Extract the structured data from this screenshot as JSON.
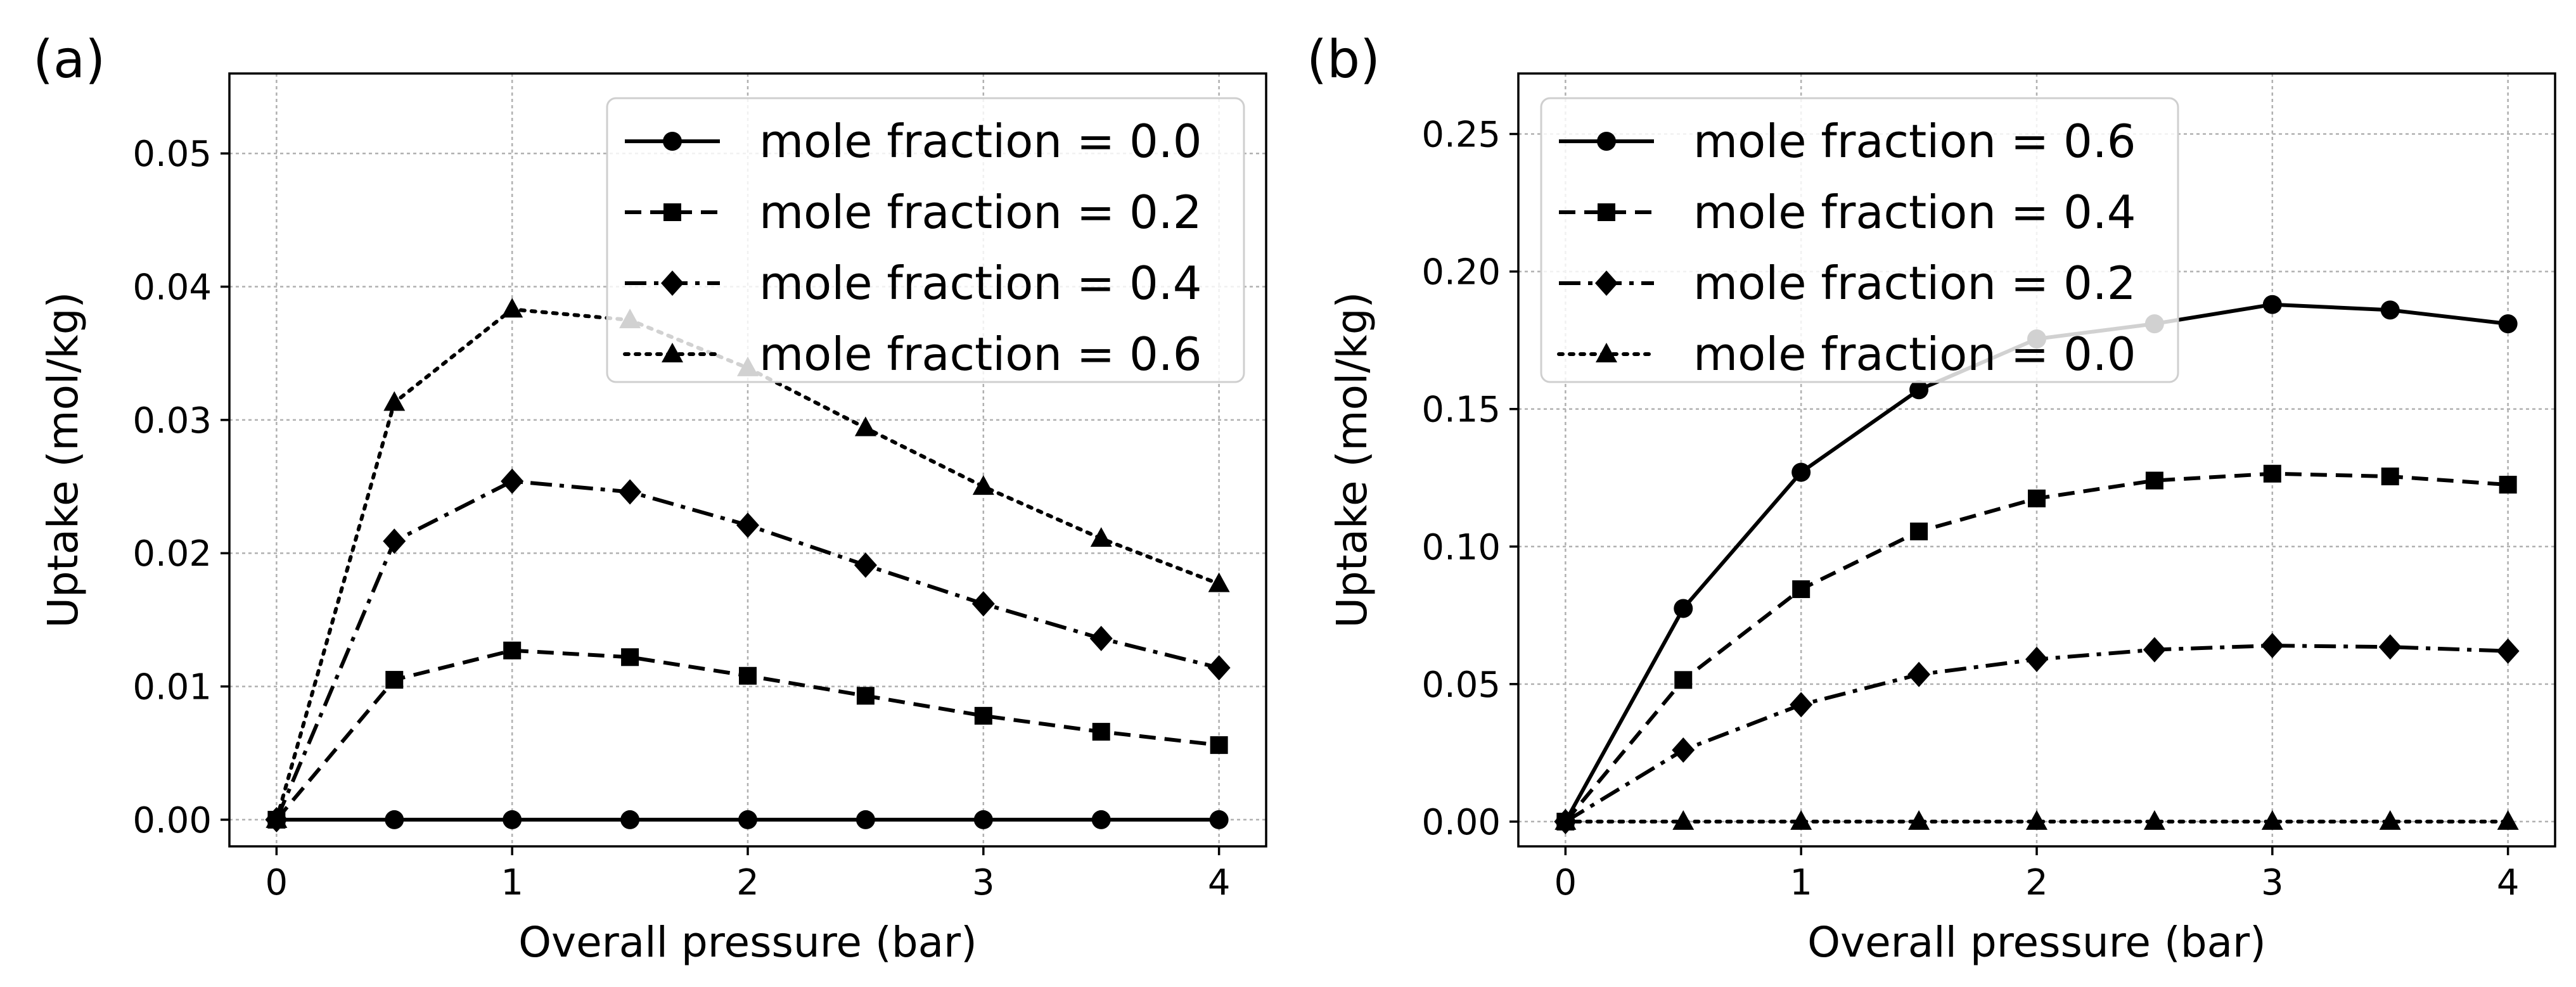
{
  "chart_data": [
    {
      "type": "line",
      "panel_label": "(a)",
      "xlabel": "Overall pressure (bar)",
      "ylabel": "Uptake (mol/kg)",
      "xlim": [
        -0.2,
        4.2
      ],
      "ylim": [
        -0.002,
        0.056
      ],
      "x_ticks": [
        "0",
        "1",
        "2",
        "3",
        "4"
      ],
      "y_ticks": [
        "0.00",
        "0.01",
        "0.02",
        "0.03",
        "0.04",
        "0.05"
      ],
      "x_tick_values": [
        0,
        1,
        2,
        3,
        4
      ],
      "y_tick_values": [
        0,
        0.01,
        0.02,
        0.03,
        0.04,
        0.05
      ],
      "grid": true,
      "legend_position": "upper right",
      "x": [
        0,
        0.5,
        1.0,
        1.5,
        2.0,
        2.5,
        3.0,
        3.5,
        4.0
      ],
      "series": [
        {
          "name": "mole fraction = 0.0",
          "marker": "circle",
          "linestyle": "solid",
          "values": [
            0,
            0,
            0,
            0,
            0,
            0,
            0,
            0,
            0
          ]
        },
        {
          "name": "mole fraction = 0.2",
          "marker": "square",
          "linestyle": "dashed",
          "values": [
            0,
            0.0105,
            0.0127,
            0.0122,
            0.0108,
            0.0093,
            0.0078,
            0.0066,
            0.0056
          ]
        },
        {
          "name": "mole fraction = 0.4",
          "marker": "diamond",
          "linestyle": "dashdot",
          "values": [
            0,
            0.0209,
            0.0254,
            0.0246,
            0.0221,
            0.0191,
            0.0162,
            0.0136,
            0.0114
          ]
        },
        {
          "name": "mole fraction = 0.6",
          "marker": "triangle",
          "linestyle": "dotted",
          "values": [
            0,
            0.0313,
            0.0383,
            0.0375,
            0.0339,
            0.0294,
            0.025,
            0.0211,
            0.0177
          ]
        }
      ]
    },
    {
      "type": "line",
      "panel_label": "(b)",
      "xlabel": "Overall pressure (bar)",
      "ylabel": "Uptake (mol/kg)",
      "xlim": [
        -0.2,
        4.2
      ],
      "ylim": [
        -0.009,
        0.272
      ],
      "x_ticks": [
        "0",
        "1",
        "2",
        "3",
        "4"
      ],
      "y_ticks": [
        "0.00",
        "0.05",
        "0.10",
        "0.15",
        "0.20",
        "0.25"
      ],
      "x_tick_values": [
        0,
        1,
        2,
        3,
        4
      ],
      "y_tick_values": [
        0,
        0.05,
        0.1,
        0.15,
        0.2,
        0.25
      ],
      "grid": true,
      "legend_position": "upper left",
      "x": [
        0,
        0.5,
        1.0,
        1.5,
        2.0,
        2.5,
        3.0,
        3.5,
        4.0
      ],
      "series": [
        {
          "name": "mole fraction = 0.6",
          "marker": "circle",
          "linestyle": "solid",
          "values": [
            0,
            0.0775,
            0.127,
            0.157,
            0.1755,
            0.181,
            0.188,
            0.186,
            0.181
          ]
        },
        {
          "name": "mole fraction = 0.4",
          "marker": "square",
          "linestyle": "dashed",
          "values": [
            0,
            0.0515,
            0.0845,
            0.1055,
            0.1175,
            0.124,
            0.1265,
            0.1255,
            0.1225
          ]
        },
        {
          "name": "mole fraction = 0.2",
          "marker": "diamond",
          "linestyle": "dashdot",
          "values": [
            0,
            0.026,
            0.0425,
            0.0535,
            0.059,
            0.0625,
            0.064,
            0.0635,
            0.062
          ]
        },
        {
          "name": "mole fraction = 0.0",
          "marker": "triangle",
          "linestyle": "dotted",
          "values": [
            0,
            0,
            0,
            0,
            0,
            0,
            0,
            0,
            0
          ]
        }
      ]
    }
  ]
}
